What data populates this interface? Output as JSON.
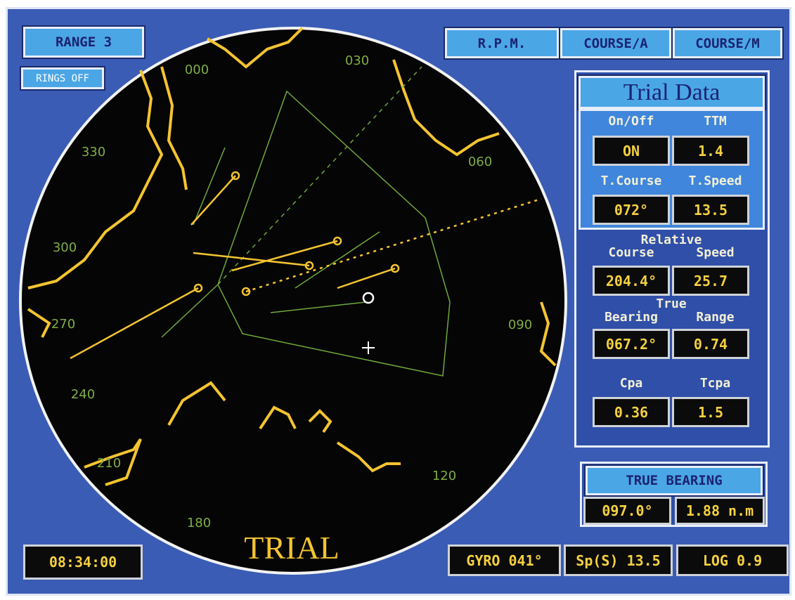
{
  "header": {
    "range": "RANGE 3",
    "rings": "RINGS OFF",
    "buttons": [
      "R.P.M.",
      "COURSE/A",
      "COURSE/M"
    ]
  },
  "trial_data": {
    "title": "Trial Data",
    "rows": [
      {
        "labels": [
          "On/Off",
          "TTM"
        ],
        "values": [
          "ON",
          "1.4"
        ]
      },
      {
        "labels": [
          "T.Course",
          "T.Speed"
        ],
        "values": [
          "072°",
          "13.5"
        ]
      }
    ],
    "relative": {
      "heading": "Relative",
      "labels": [
        "Course",
        "Speed"
      ],
      "values": [
        "204.4°",
        "25.7"
      ]
    },
    "true": {
      "heading": "True",
      "labels": [
        "Bearing",
        "Range"
      ],
      "values": [
        "067.2°",
        "0.74"
      ]
    },
    "cpa": {
      "labels": [
        "Cpa",
        "Tcpa"
      ],
      "values": [
        "0.36",
        "1.5"
      ]
    }
  },
  "true_bearing": {
    "title": "TRUE BEARING",
    "values": [
      "097.0°",
      "1.88 n.m"
    ]
  },
  "clock": "08:34:00",
  "status": [
    "GYRO 041°",
    "Sp(S) 13.5",
    "LOG 0.9"
  ],
  "watermark": "TRIAL",
  "bearing_labels": [
    "000",
    "030",
    "060",
    "090",
    "120",
    "180",
    "210",
    "240",
    "270",
    "300",
    "330"
  ]
}
